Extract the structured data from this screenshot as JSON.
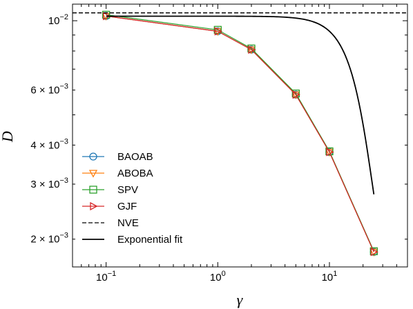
{
  "chart_data": {
    "type": "line",
    "xlabel": "γ",
    "ylabel": "D",
    "xscale": "log",
    "yscale": "log",
    "xlim": [
      0.05,
      50
    ],
    "ylim": [
      0.00163,
      0.0113
    ],
    "grid": false,
    "legend_position": "lower-left",
    "x_ticks": [
      {
        "value": 0.1,
        "base": "10",
        "exp": "−1"
      },
      {
        "value": 1,
        "base": "10",
        "exp": "0"
      },
      {
        "value": 10,
        "base": "10",
        "exp": "1"
      }
    ],
    "y_ticks": [
      {
        "value": 0.01,
        "mant": "",
        "base": "10",
        "exp": "−2"
      },
      {
        "value": 0.006,
        "mant": "6 × ",
        "base": "10",
        "exp": "−3"
      },
      {
        "value": 0.004,
        "mant": "4 × ",
        "base": "10",
        "exp": "−3"
      },
      {
        "value": 0.003,
        "mant": "3 × ",
        "base": "10",
        "exp": "−3"
      },
      {
        "value": 0.002,
        "mant": "2 × ",
        "base": "10",
        "exp": "−3"
      }
    ],
    "series": [
      {
        "name": "BAOAB",
        "color": "#1f77b4",
        "marker": "circle",
        "x": [
          0.1,
          1,
          2,
          5,
          10,
          25
        ],
        "y": [
          0.01035,
          0.00925,
          0.00808,
          0.0058,
          0.0038,
          0.00182
        ]
      },
      {
        "name": "ABOBA",
        "color": "#ff7f0e",
        "marker": "triangle-down",
        "x": [
          0.1,
          1,
          2,
          5,
          10,
          25
        ],
        "y": [
          0.01035,
          0.00925,
          0.00808,
          0.0058,
          0.0038,
          0.00182
        ]
      },
      {
        "name": "SPV",
        "color": "#2ca02c",
        "marker": "square",
        "x": [
          0.1,
          1,
          2,
          5,
          10,
          25
        ],
        "y": [
          0.01045,
          0.00935,
          0.00815,
          0.00585,
          0.00382,
          0.00183
        ]
      },
      {
        "name": "GJF",
        "color": "#d62728",
        "marker": "triangle-right",
        "x": [
          0.1,
          1,
          2,
          5,
          10,
          25
        ],
        "y": [
          0.01035,
          0.00925,
          0.00808,
          0.0058,
          0.0038,
          0.00182
        ]
      },
      {
        "name": "NVE",
        "color": "#000000",
        "style": "dashed",
        "y_const": 0.0106
      },
      {
        "name": "Exponential fit",
        "color": "#000000",
        "style": "solid",
        "fit": {
          "a": 0.0086,
          "b": 0.000135,
          "c": 0.00174
        }
      }
    ]
  }
}
